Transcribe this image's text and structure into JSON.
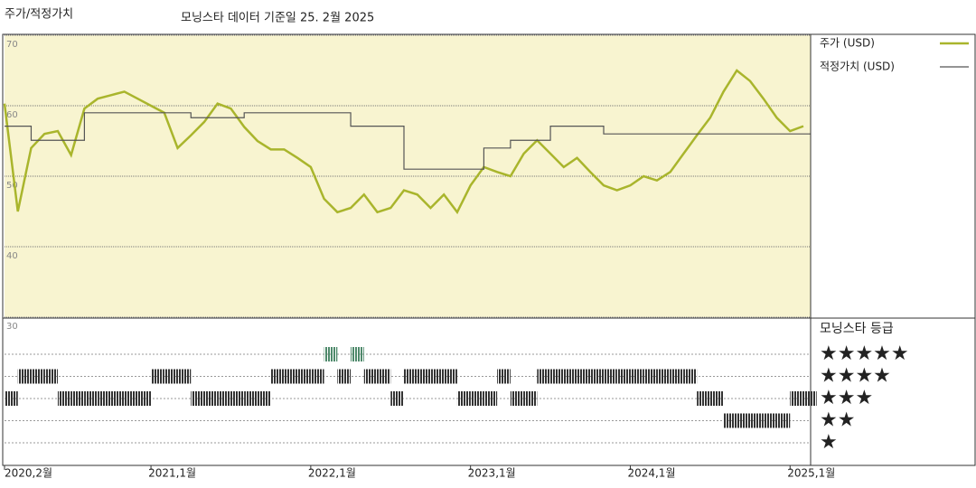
{
  "chart_data": {
    "type": "line",
    "label": "주가/적정가치",
    "title": "모닝스타 데이터 기준일 25. 2월 2025",
    "x": [
      "2020-02",
      "2020-03",
      "2020-04",
      "2020-05",
      "2020-06",
      "2020-07",
      "2020-08",
      "2020-09",
      "2020-10",
      "2020-11",
      "2020-12",
      "2021-01",
      "2021-02",
      "2021-03",
      "2021-04",
      "2021-05",
      "2021-06",
      "2021-07",
      "2021-08",
      "2021-09",
      "2021-10",
      "2021-11",
      "2021-12",
      "2022-01",
      "2022-02",
      "2022-03",
      "2022-04",
      "2022-05",
      "2022-06",
      "2022-07",
      "2022-08",
      "2022-09",
      "2022-10",
      "2022-11",
      "2022-12",
      "2023-01",
      "2023-02",
      "2023-03",
      "2023-04",
      "2023-05",
      "2023-06",
      "2023-07",
      "2023-08",
      "2023-09",
      "2023-10",
      "2023-11",
      "2023-12",
      "2024-01",
      "2024-02",
      "2024-03",
      "2024-04",
      "2024-05",
      "2024-06",
      "2024-07",
      "2024-08",
      "2024-09",
      "2024-10",
      "2024-11",
      "2024-12",
      "2025-01",
      "2025-02"
    ],
    "series": [
      {
        "name": "주가 (USD)",
        "color": "#a9b52c",
        "step": false,
        "values": [
          60.3,
          45,
          54,
          56,
          56.4,
          53,
          59.6,
          61,
          61.5,
          62,
          61,
          60,
          59,
          54,
          55.8,
          57.7,
          60.3,
          59.6,
          57,
          55,
          53.8,
          53.8,
          52.6,
          51.3,
          46.8,
          44.9,
          45.5,
          47.4,
          44.9,
          45.5,
          48,
          47.4,
          45.5,
          47.4,
          44.9,
          48.7,
          51.3,
          50.6,
          50,
          53.2,
          55.1,
          53.2,
          51.3,
          52.6,
          50.6,
          48.7,
          48,
          48.7,
          50,
          49.4,
          50.6,
          53.2,
          55.8,
          58.3,
          62,
          65,
          63.5,
          61,
          58.3,
          56.4,
          57.1
        ]
      },
      {
        "name": "적정가치 (USD)",
        "color": "#555555",
        "step": true,
        "values": [
          57.1,
          57.1,
          55.1,
          55.1,
          55.1,
          55.1,
          59,
          59,
          59,
          59,
          59,
          59,
          59,
          59,
          58.3,
          58.3,
          58.3,
          58.3,
          59,
          59,
          59,
          59,
          59,
          59,
          59,
          59,
          57.1,
          57.1,
          57.1,
          57.1,
          51,
          51,
          51,
          51,
          51,
          51,
          54,
          54,
          55.1,
          55.1,
          55.1,
          57.1,
          57.1,
          57.1,
          57.1,
          56,
          56,
          56,
          56,
          56,
          56,
          56,
          56,
          56,
          56,
          56,
          56,
          56,
          56,
          56,
          56
        ]
      }
    ],
    "ylim": [
      30,
      70
    ],
    "yticks": [
      30,
      40,
      50,
      60,
      70
    ],
    "xlim": [
      "2020-02",
      "2025-02"
    ],
    "xticks": [
      {
        "value": "2020-02",
        "label": "2020,2월"
      },
      {
        "value": "2021-01",
        "label": "2021,1월"
      },
      {
        "value": "2022-01",
        "label": "2022,1월"
      },
      {
        "value": "2023-01",
        "label": "2023,1월"
      },
      {
        "value": "2024-01",
        "label": "2024,1월"
      },
      {
        "value": "2025-01",
        "label": "2025,1월"
      }
    ],
    "grid": true,
    "background": "#f8f4d0",
    "rating": {
      "title": "모닝스타 등급",
      "levels": [
        5,
        4,
        3,
        2,
        1
      ],
      "level_labels": [
        "★★★★★",
        "★★★★",
        "★★★",
        "★★",
        "★"
      ],
      "colors": {
        "high": "#4f8a6c",
        "normal": "#333333"
      },
      "values": [
        3,
        4,
        4,
        4,
        3,
        3,
        3,
        3,
        3,
        3,
        3,
        4,
        4,
        4,
        3,
        3,
        3,
        3,
        3,
        3,
        4,
        4,
        4,
        4,
        5,
        4,
        5,
        4,
        4,
        3,
        4,
        4,
        4,
        4,
        3,
        3,
        3,
        4,
        3,
        3,
        4,
        4,
        4,
        4,
        4,
        4,
        4,
        4,
        4,
        4,
        4,
        4,
        3,
        3,
        2,
        2,
        2,
        2,
        2,
        3,
        3
      ]
    }
  }
}
